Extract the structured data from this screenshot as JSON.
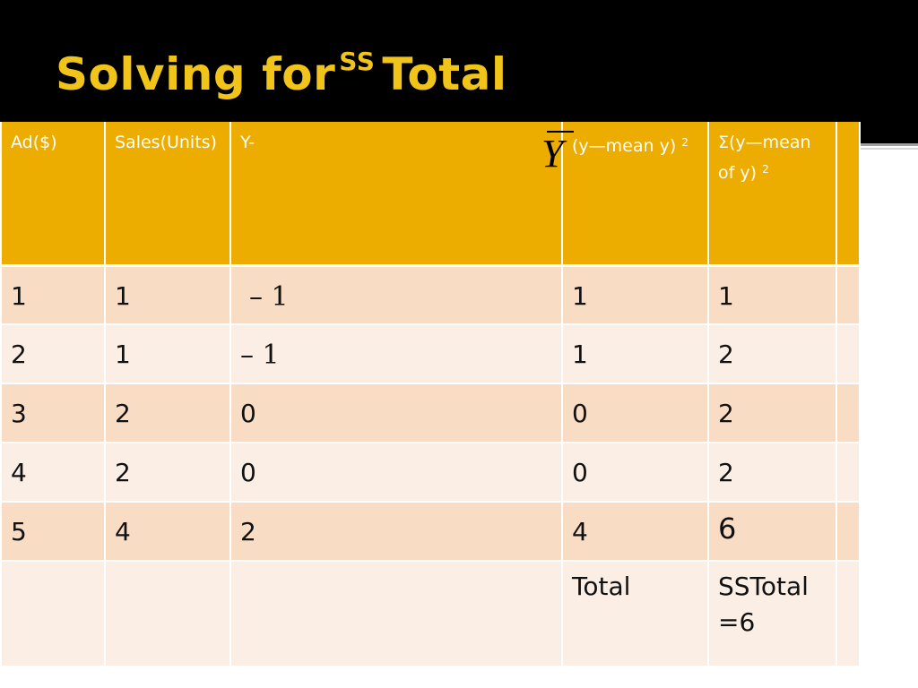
{
  "slide": {
    "title_prefix": "Solving for",
    "title_sup": "SS",
    "title_suffix": "Total"
  },
  "table": {
    "headers": [
      {
        "text": "Ad($)"
      },
      {
        "text": "Sales(Units)"
      },
      {
        "text": "Y-",
        "symbol": "Y"
      },
      {
        "text": "(y—mean y)",
        "sup": "2"
      },
      {
        "text": "Σ(y—mean of y)",
        "sup": "2"
      },
      {
        "text": ""
      }
    ],
    "rows": [
      [
        "1",
        "1",
        "– 1",
        "1",
        "1",
        ""
      ],
      [
        "2",
        "1",
        "– 1",
        "1",
        "2",
        ""
      ],
      [
        "3",
        "2",
        "0",
        "0",
        "2",
        ""
      ],
      [
        "4",
        "2",
        "0",
        "0",
        "2",
        ""
      ],
      [
        "5",
        "4",
        "2",
        "4",
        "6",
        ""
      ]
    ],
    "total_row": [
      "",
      "",
      "",
      "Total",
      "SSTotal =6",
      ""
    ]
  },
  "colors": {
    "title": "#f0c419",
    "header_bg": "#edac00",
    "row_odd": "#f8dcc4",
    "row_even": "#fbeee5",
    "band": "#000000"
  }
}
